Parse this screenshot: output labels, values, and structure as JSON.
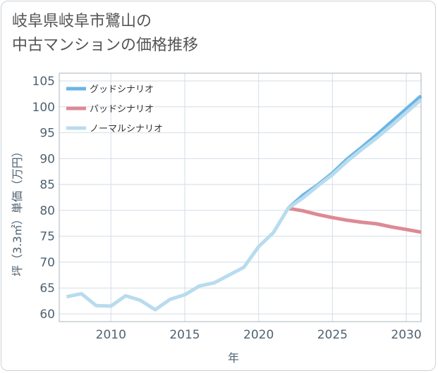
{
  "title_line1": "岐阜県岐阜市鷺山の",
  "title_line2": "中古マンションの価格推移",
  "chart_data": {
    "type": "line",
    "xlabel": "年",
    "ylabel": "坪（3.3㎡）単価（万円）",
    "xlim": [
      2006.5,
      2031
    ],
    "ylim": [
      58.5,
      106.5
    ],
    "x_ticks": [
      2010,
      2015,
      2020,
      2025,
      2030
    ],
    "y_ticks": [
      60,
      65,
      70,
      75,
      80,
      85,
      90,
      95,
      100,
      105
    ],
    "grid": true,
    "legend_position": "top-left",
    "series": [
      {
        "name": "グッドシナリオ",
        "color": "#6bb4e6",
        "points": [
          [
            2022,
            80.4
          ],
          [
            2023,
            82.9
          ],
          [
            2024,
            84.9
          ],
          [
            2025,
            87.2
          ],
          [
            2026,
            89.9
          ],
          [
            2027,
            92.2
          ],
          [
            2028,
            94.6
          ],
          [
            2029,
            97.1
          ],
          [
            2030,
            99.6
          ],
          [
            2031,
            102.1
          ]
        ]
      },
      {
        "name": "バッドシナリオ",
        "color": "#dd8a94",
        "points": [
          [
            2022,
            80.4
          ],
          [
            2023,
            79.9
          ],
          [
            2024,
            79.2
          ],
          [
            2025,
            78.6
          ],
          [
            2026,
            78.1
          ],
          [
            2027,
            77.7
          ],
          [
            2028,
            77.4
          ],
          [
            2029,
            76.8
          ],
          [
            2030,
            76.3
          ],
          [
            2031,
            75.8
          ]
        ]
      },
      {
        "name": "ノーマルシナリオ",
        "color": "#b8dcee",
        "points": [
          [
            2007,
            63.3
          ],
          [
            2008,
            63.9
          ],
          [
            2009,
            61.6
          ],
          [
            2010,
            61.5
          ],
          [
            2011,
            63.5
          ],
          [
            2012,
            62.6
          ],
          [
            2013,
            60.8
          ],
          [
            2014,
            62.8
          ],
          [
            2015,
            63.7
          ],
          [
            2016,
            65.4
          ],
          [
            2017,
            66.0
          ],
          [
            2018,
            67.5
          ],
          [
            2019,
            69.0
          ],
          [
            2020,
            73.0
          ],
          [
            2021,
            75.7
          ],
          [
            2022,
            80.4
          ],
          [
            2023,
            82.4
          ],
          [
            2024,
            84.7
          ],
          [
            2025,
            86.9
          ],
          [
            2026,
            89.5
          ],
          [
            2027,
            91.8
          ],
          [
            2028,
            94.0
          ],
          [
            2029,
            96.4
          ],
          [
            2030,
            98.9
          ],
          [
            2031,
            101.4
          ]
        ]
      }
    ]
  }
}
